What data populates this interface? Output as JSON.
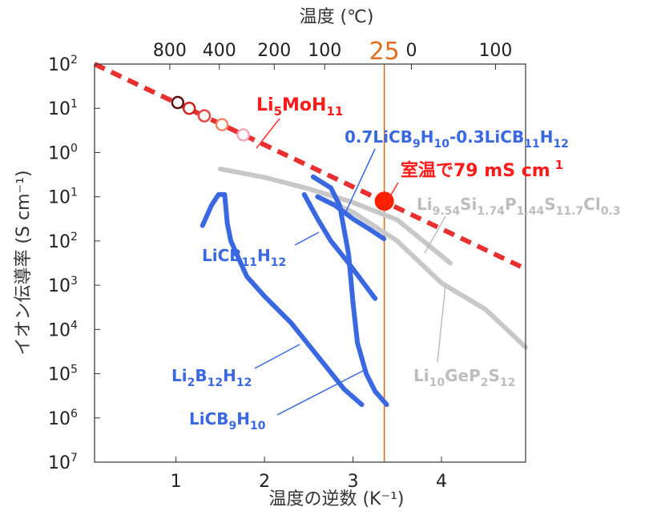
{
  "chart_data": {
    "type": "line",
    "title": "",
    "xlabel": "温度の逆数 (K⁻¹)",
    "ylabel": "イオン伝導率 (S cm⁻¹)",
    "x2label": "温度 (℃)",
    "xlim": [
      0.08,
      4.95
    ],
    "ylim": [
      -7,
      2
    ],
    "yscale": "log",
    "grid": false,
    "x_ticks": [
      1,
      2,
      3,
      4
    ],
    "x_tick_labels": [
      "1",
      "2",
      "3",
      "4"
    ],
    "y_ticks": [
      2,
      1,
      0,
      -1,
      -2,
      -3,
      -4,
      -5,
      -6,
      -7
    ],
    "y_tick_labels": [
      {
        "base": "10",
        "exp": "2"
      },
      {
        "base": "10",
        "exp": "1"
      },
      {
        "base": "10",
        "exp": "0"
      },
      {
        "base": "10",
        "exp": "1"
      },
      {
        "base": "10",
        "exp": "2"
      },
      {
        "base": "10",
        "exp": "3"
      },
      {
        "base": "10",
        "exp": "4"
      },
      {
        "base": "10",
        "exp": "5"
      },
      {
        "base": "10",
        "exp": "6"
      },
      {
        "base": "10",
        "exp": "7"
      }
    ],
    "x2_ticks": [
      {
        "label": "800",
        "x": 0.93
      },
      {
        "label": "400",
        "x": 1.49
      },
      {
        "label": "200",
        "x": 2.11
      },
      {
        "label": "100",
        "x": 2.68
      },
      {
        "label": "0",
        "x": 3.66
      },
      {
        "label": "100",
        "x": 4.61
      }
    ],
    "room_temp": {
      "label": "25",
      "x": 3.354,
      "color": "#e07020"
    },
    "series": [
      {
        "name": "Li5MoH11",
        "style": "dashed",
        "color": "#e83030",
        "points": [
          [
            0.08,
            2.0
          ],
          [
            4.95,
            -2.63
          ]
        ]
      },
      {
        "name": "Li9.54Si1.74P1.44S11.7Cl0.3",
        "style": "solid",
        "color": "#c8c8c8",
        "points": [
          [
            1.5,
            -0.37
          ],
          [
            2.0,
            -0.56
          ],
          [
            2.5,
            -0.82
          ],
          [
            3.0,
            -1.13
          ],
          [
            3.5,
            -1.52
          ],
          [
            4.1,
            -2.5
          ]
        ]
      },
      {
        "name": "Li10GeP2S12",
        "style": "solid",
        "color": "#c8c8c8",
        "points": [
          [
            2.6,
            -1.0
          ],
          [
            3.0,
            -1.35
          ],
          [
            3.5,
            -2.0
          ],
          [
            4.0,
            -2.95
          ],
          [
            4.5,
            -3.55
          ],
          [
            4.95,
            -4.4
          ]
        ]
      },
      {
        "name": "LiCB11H12",
        "style": "solid",
        "color": "#3a68e0",
        "points": [
          [
            1.3,
            -1.65
          ],
          [
            1.4,
            -1.2
          ],
          [
            1.48,
            -0.95
          ],
          [
            1.55,
            -0.95
          ],
          [
            1.58,
            -1.6
          ],
          [
            1.62,
            -2.0
          ],
          [
            1.8,
            -2.8
          ],
          [
            2.0,
            -3.25
          ],
          [
            2.3,
            -3.85
          ],
          [
            2.6,
            -4.6
          ],
          [
            2.9,
            -5.35
          ],
          [
            3.1,
            -5.7
          ]
        ]
      },
      {
        "name": "LiCB9H10",
        "style": "solid",
        "color": "#3a68e0",
        "points": [
          [
            2.55,
            -0.55
          ],
          [
            2.75,
            -0.8
          ],
          [
            2.85,
            -1.2
          ],
          [
            2.95,
            -2.3
          ],
          [
            3.0,
            -3.4
          ],
          [
            3.05,
            -4.3
          ],
          [
            3.15,
            -5.0
          ],
          [
            3.25,
            -5.4
          ],
          [
            3.38,
            -5.7
          ]
        ]
      },
      {
        "name": "0.7LiCB9H10-0.3LiCB11H12",
        "style": "solid",
        "color": "#3a68e0",
        "points": [
          [
            2.45,
            -0.95
          ],
          [
            2.6,
            -1.5
          ],
          [
            2.75,
            -2.0
          ],
          [
            2.95,
            -2.5
          ],
          [
            3.1,
            -2.9
          ],
          [
            3.25,
            -3.3
          ]
        ]
      },
      {
        "name": "0.7LiCB9H10-0.3LiCB11H12 (upper)",
        "style": "solid",
        "color": "#3a68e0",
        "points": [
          [
            2.6,
            -1.0
          ],
          [
            2.8,
            -1.2
          ],
          [
            3.0,
            -1.5
          ],
          [
            3.2,
            -1.75
          ],
          [
            3.35,
            -1.95
          ]
        ]
      }
    ],
    "markers": [
      {
        "x": 1.02,
        "y": 1.13,
        "color": "#5a1010",
        "fill": "none"
      },
      {
        "x": 1.15,
        "y": 1.0,
        "color": "#d02020",
        "fill": "none"
      },
      {
        "x": 1.32,
        "y": 0.83,
        "color": "#e84848",
        "fill": "none"
      },
      {
        "x": 1.52,
        "y": 0.63,
        "color": "#ee8a6a",
        "fill": "none"
      },
      {
        "x": 1.76,
        "y": 0.4,
        "color": "#f3a8c0",
        "fill": "none"
      },
      {
        "x": 3.354,
        "y": -1.1,
        "color": "#ff2000",
        "fill": "#ff2000",
        "big": true
      }
    ],
    "annotations": [
      {
        "text": "Li",
        "sub": "5",
        "text2": "MoH",
        "sub2": "11",
        "color": "#ff1a1a",
        "size": 22
      },
      {
        "text": "0.7LiCB",
        "sub": "9",
        "text2": "H",
        "sub2": "10",
        "text3": "-0.3LiCB",
        "sub3": "11",
        "text4": "H",
        "sub4": "12",
        "color": "#3a68e0",
        "size": 20
      },
      {
        "text": "室温で79 mS cm",
        "sup": "1",
        "color": "#ff1a1a",
        "size": 22
      },
      {
        "text": "Li",
        "sub": "9.54",
        "text2": "Si",
        "sub2": "1.74",
        "text3": "P",
        "sub3": "1.44",
        "text4": "S",
        "sub4": "11.7",
        "text5": "Cl",
        "sub5": "0.3",
        "color": "#bdbdbd",
        "size": 20
      },
      {
        "text": "LiCB",
        "sub": "11",
        "text2": "H",
        "sub2": "12",
        "color": "#3a68e0",
        "size": 20
      },
      {
        "text": "Li",
        "sub": "2",
        "text2": "B",
        "sub2": "12",
        "text3": "H",
        "sub3": "12",
        "color": "#3a68e0",
        "size": 20
      },
      {
        "text": "LiCB",
        "sub": "9",
        "text2": "H",
        "sub2": "10",
        "color": "#3a68e0",
        "size": 20
      },
      {
        "text": "Li",
        "sub": "10",
        "text2": "GeP",
        "sub2": "2",
        "text3": "S",
        "sub3": "12",
        "color": "#bdbdbd",
        "size": 20
      }
    ]
  }
}
